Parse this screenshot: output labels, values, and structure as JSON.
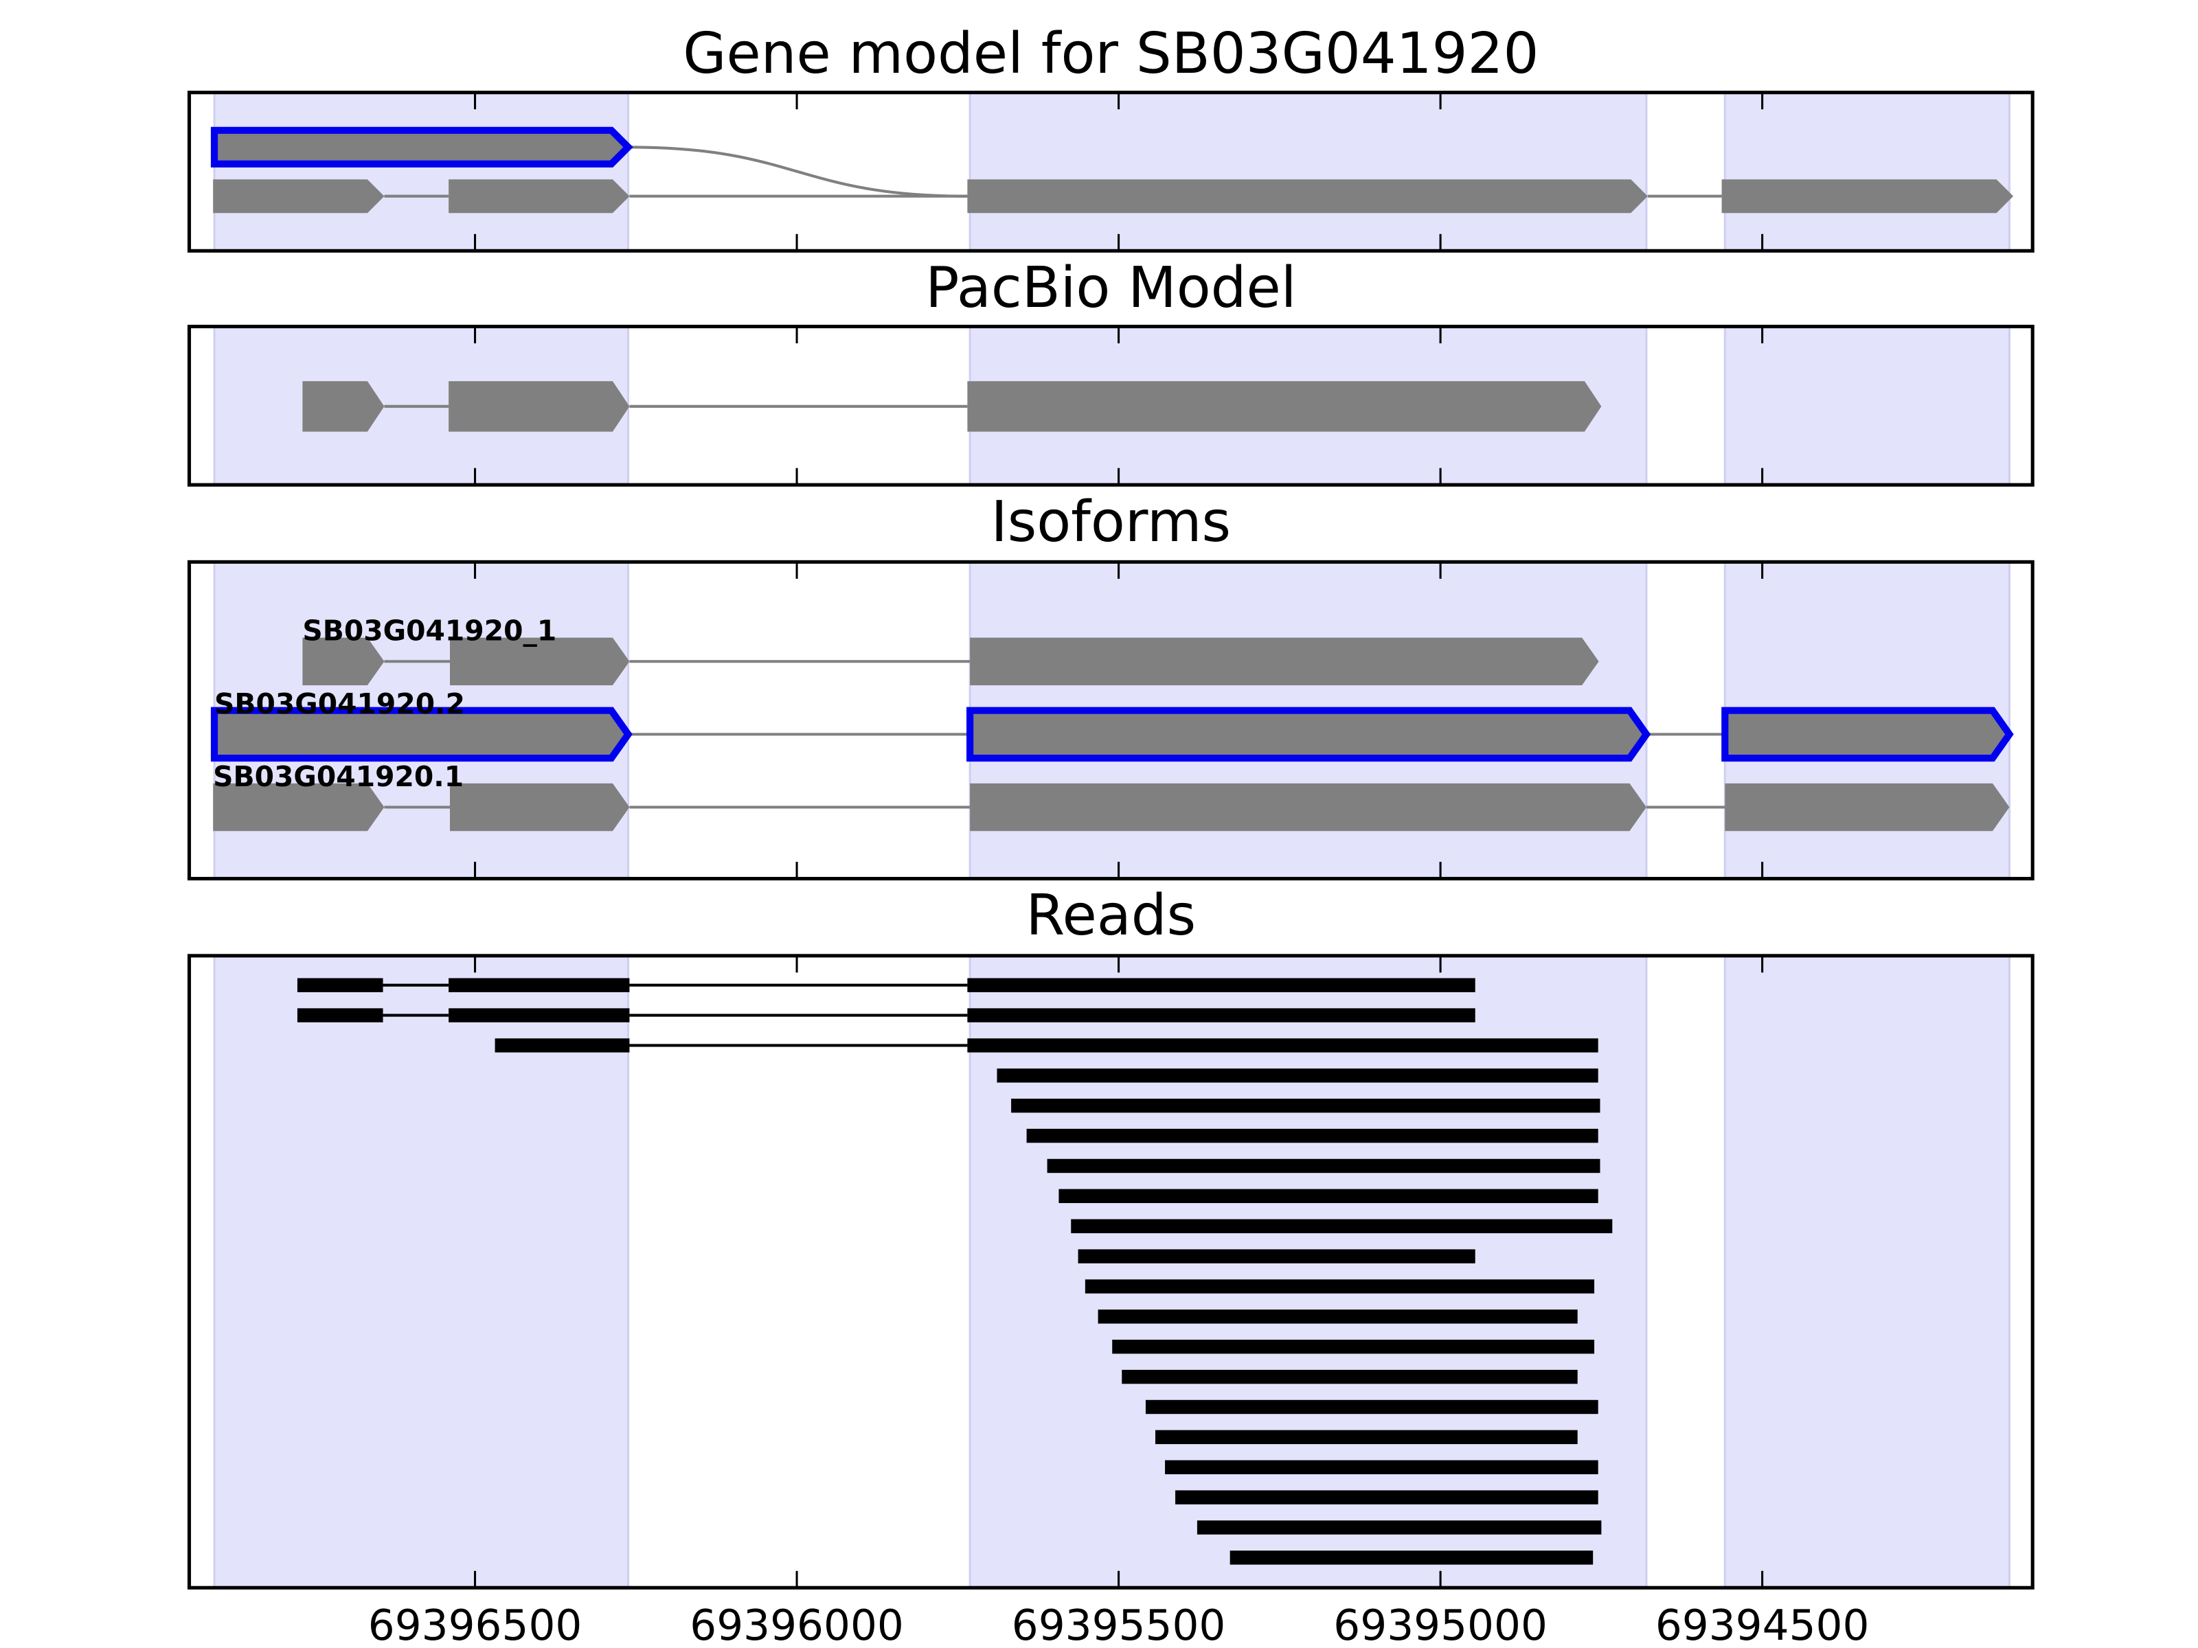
{
  "chart_data": [
    {
      "type": "gene-model",
      "title": "Gene model for SB03G041920",
      "xlim": [
        69396944,
        69394080
      ],
      "xticks": [
        69396500,
        69396000,
        69395500,
        69395000,
        69394500
      ],
      "shaded_regions": [
        [
          69396905,
          69396262
        ],
        [
          69395731,
          69394680
        ],
        [
          69394558,
          69394116
        ]
      ],
      "rows": [
        {
          "highlight": true,
          "exons": [
            [
              69396905,
              69396262
            ]
          ]
        },
        {
          "exons": [
            [
              69396907,
              69396641
            ],
            [
              69396541,
              69396260
            ],
            [
              69395735,
              69394678
            ],
            [
              69394563,
              69394110
            ]
          ]
        }
      ]
    },
    {
      "type": "gene-model",
      "title": "PacBio Model",
      "xlim": [
        69396944,
        69394080
      ],
      "xticks": [
        69396500,
        69396000,
        69395500,
        69395000,
        69394500
      ],
      "shaded_regions": [
        [
          69396905,
          69396262
        ],
        [
          69395731,
          69394680
        ],
        [
          69394558,
          69394116
        ]
      ],
      "rows": [
        {
          "exons": [
            [
              69396768,
              69396641
            ],
            [
              69396541,
              69396260
            ],
            [
              69395735,
              69394750
            ]
          ]
        }
      ]
    },
    {
      "type": "isoforms",
      "title": "Isoforms",
      "xlim": [
        69396944,
        69394080
      ],
      "xticks": [
        69396500,
        69396000,
        69395500,
        69395000,
        69394500
      ],
      "shaded_regions": [
        [
          69396905,
          69396262
        ],
        [
          69395731,
          69394680
        ],
        [
          69394558,
          69394116
        ]
      ],
      "rows": [
        {
          "label": "SB03G041920_1",
          "exons": [
            [
              69396768,
              69396641
            ],
            [
              69396539,
              69396260
            ],
            [
              69395731,
              69394754
            ]
          ]
        },
        {
          "label": "SB03G041920.2",
          "highlight": true,
          "exons": [
            [
              69396905,
              69396262
            ],
            [
              69395731,
              69394680
            ],
            [
              69394558,
              69394116
            ]
          ]
        },
        {
          "label": "SB03G041920.1",
          "exons": [
            [
              69396907,
              69396641
            ],
            [
              69396539,
              69396260
            ],
            [
              69395731,
              69394680
            ],
            [
              69394558,
              69394116
            ]
          ]
        }
      ]
    },
    {
      "type": "reads",
      "title": "Reads",
      "xlim": [
        69396944,
        69394080
      ],
      "xticks": [
        69396500,
        69396000,
        69395500,
        69395000,
        69394500
      ],
      "shaded_regions": [
        [
          69396905,
          69396262
        ],
        [
          69395731,
          69394680
        ],
        [
          69394558,
          69394116
        ]
      ],
      "reads": [
        [
          [
            69396776,
            69396643
          ],
          [
            69396541,
            69396260
          ],
          [
            69395735,
            69394946
          ]
        ],
        [
          [
            69396776,
            69396643
          ],
          [
            69396541,
            69396260
          ],
          [
            69395735,
            69394946
          ]
        ],
        [
          [
            69396469,
            69396260
          ],
          [
            69395735,
            69394755
          ]
        ],
        [
          [
            69395689,
            69394755
          ]
        ],
        [
          [
            69395667,
            69394752
          ]
        ],
        [
          [
            69395643,
            69394755
          ]
        ],
        [
          [
            69395611,
            69394752
          ]
        ],
        [
          [
            69395593,
            69394755
          ]
        ],
        [
          [
            69395574,
            69394733
          ]
        ],
        [
          [
            69395563,
            69394946
          ]
        ],
        [
          [
            69395552,
            69394761
          ]
        ],
        [
          [
            69395532,
            69394787
          ]
        ],
        [
          [
            69395510,
            69394761
          ]
        ],
        [
          [
            69395495,
            69394787
          ]
        ],
        [
          [
            69395458,
            69394755
          ]
        ],
        [
          [
            69395443,
            69394787
          ]
        ],
        [
          [
            69395428,
            69394755
          ]
        ],
        [
          [
            69395412,
            69394755
          ]
        ],
        [
          [
            69395378,
            69394750
          ]
        ],
        [
          [
            69395327,
            69394763
          ]
        ]
      ]
    }
  ]
}
